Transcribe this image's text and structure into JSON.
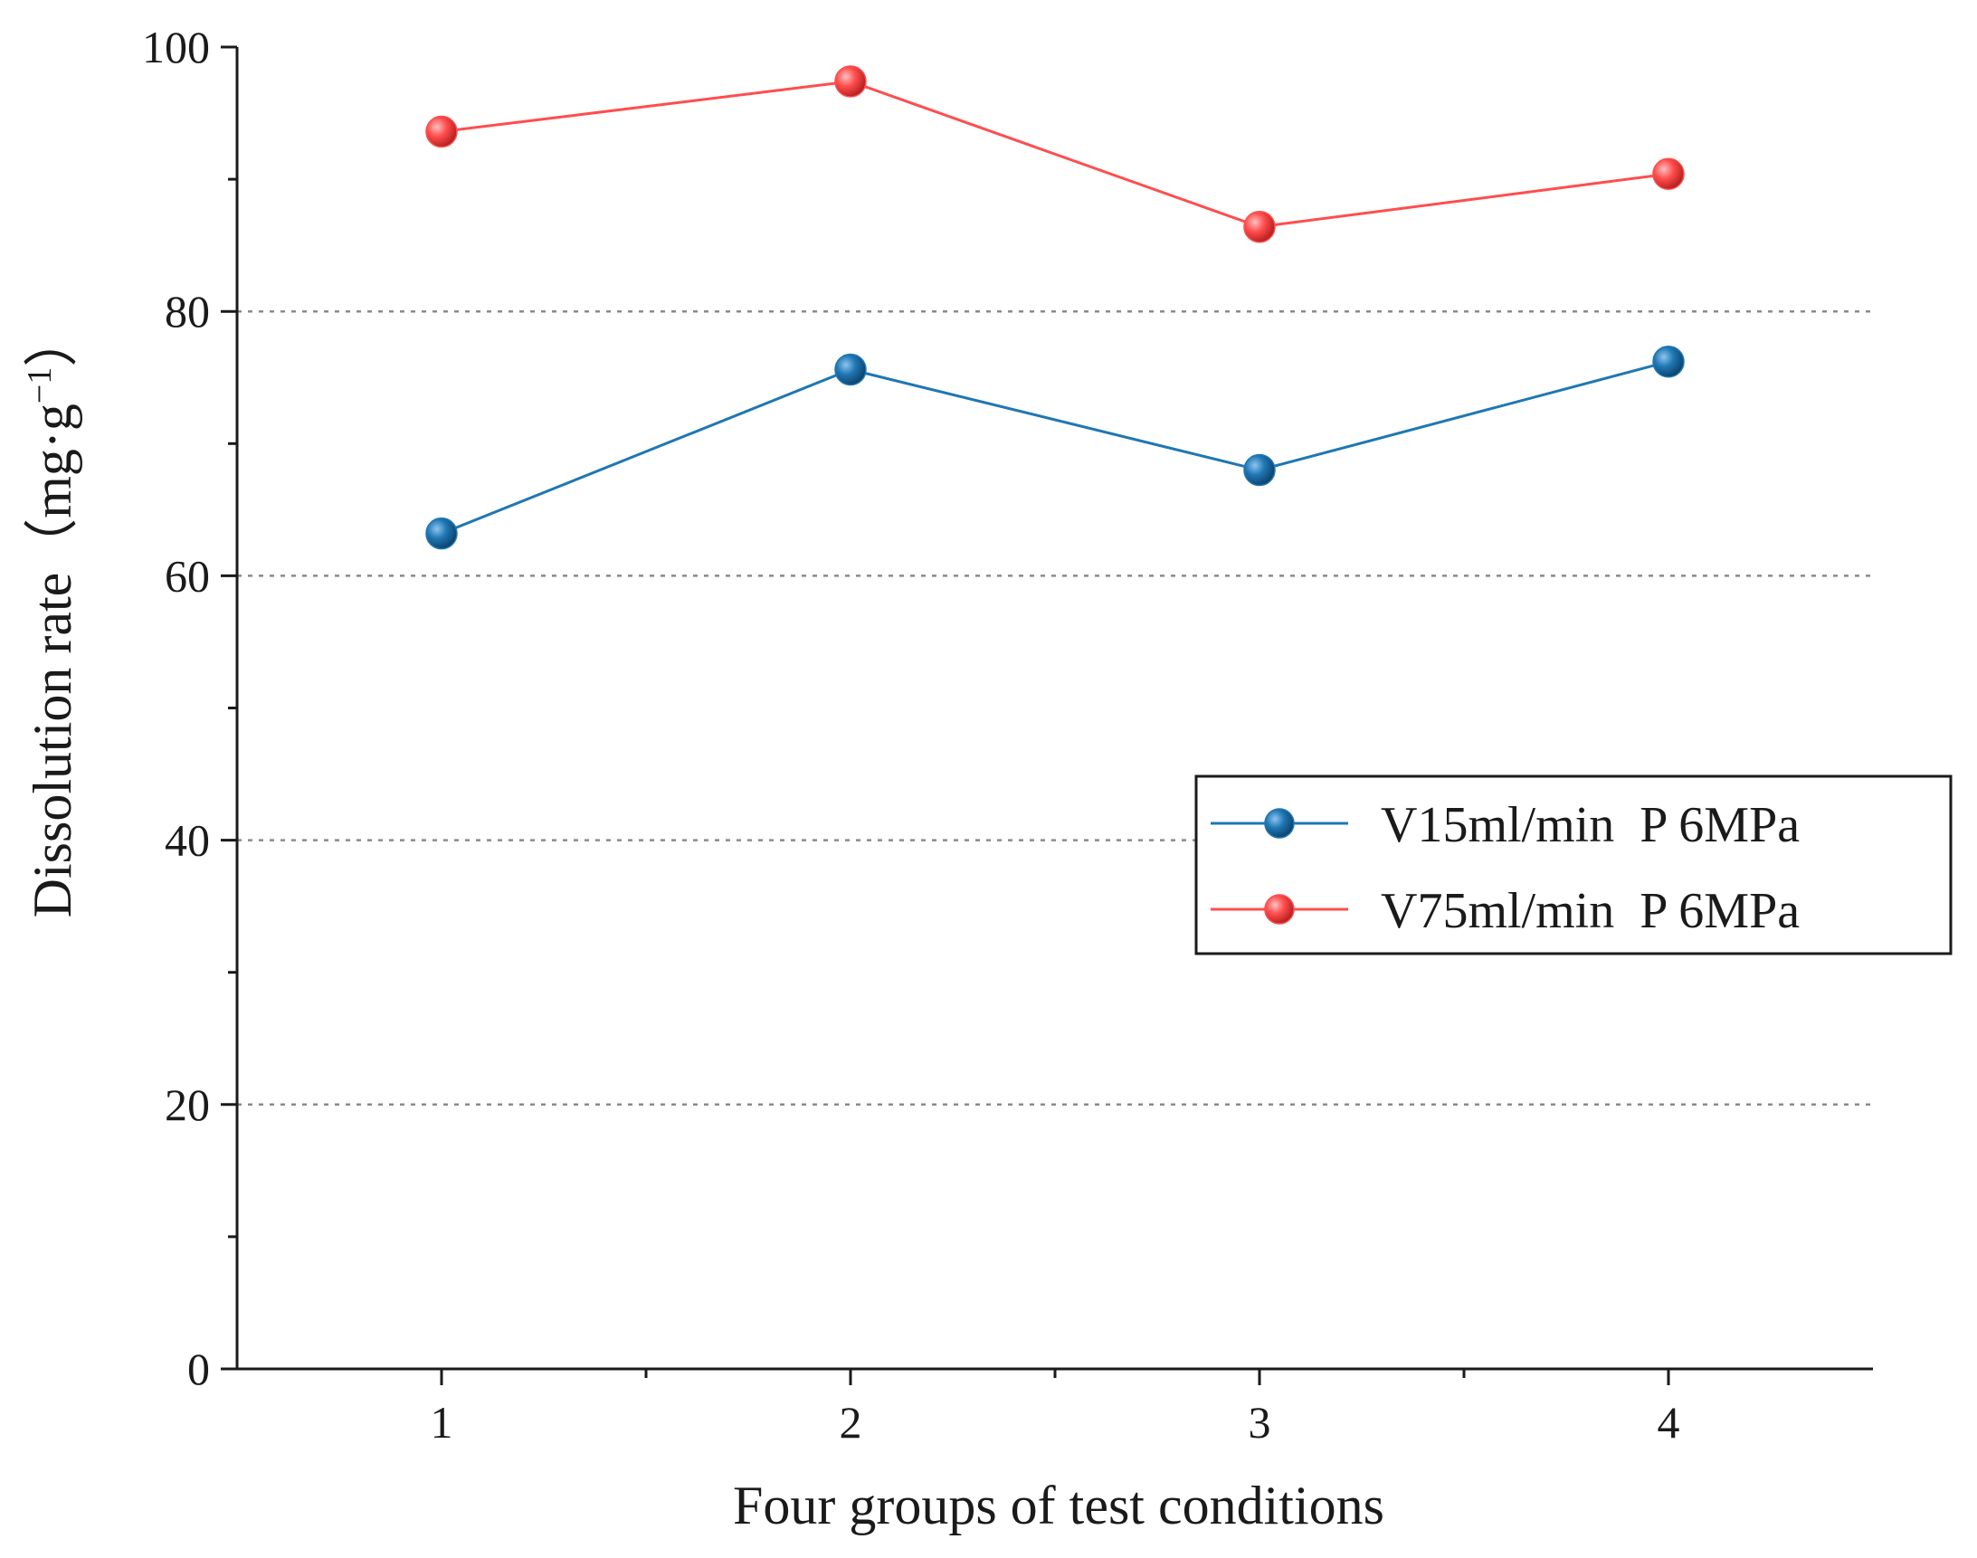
{
  "chart_data": {
    "type": "line",
    "title": "",
    "xlabel": "Four groups of test conditions",
    "ylabel_main": "Dissolution rate（mg·g",
    "ylabel_sup": "−1",
    "ylabel_close": "）",
    "x": [
      1,
      2,
      3,
      4
    ],
    "x_tick_labels": [
      "1",
      "2",
      "3",
      "4"
    ],
    "xlim": [
      0.5,
      4.5
    ],
    "ylim": [
      0,
      100
    ],
    "y_ticks": [
      0,
      20,
      40,
      60,
      80,
      100
    ],
    "y_tick_labels": [
      "0",
      "20",
      "40",
      "60",
      "80",
      "100"
    ],
    "grid": "dashed horizontal at 20, 40, 60, 80",
    "legend_position": "right, middle",
    "series": [
      {
        "name": "V15ml/min  P 6MPa",
        "color": "#1f77b4",
        "values": [
          63.2,
          75.6,
          68.0,
          76.2
        ]
      },
      {
        "name": "V75ml/min  P 6MPa",
        "color": "#ff4d4d",
        "values": [
          93.6,
          97.4,
          86.4,
          90.4
        ]
      }
    ]
  }
}
